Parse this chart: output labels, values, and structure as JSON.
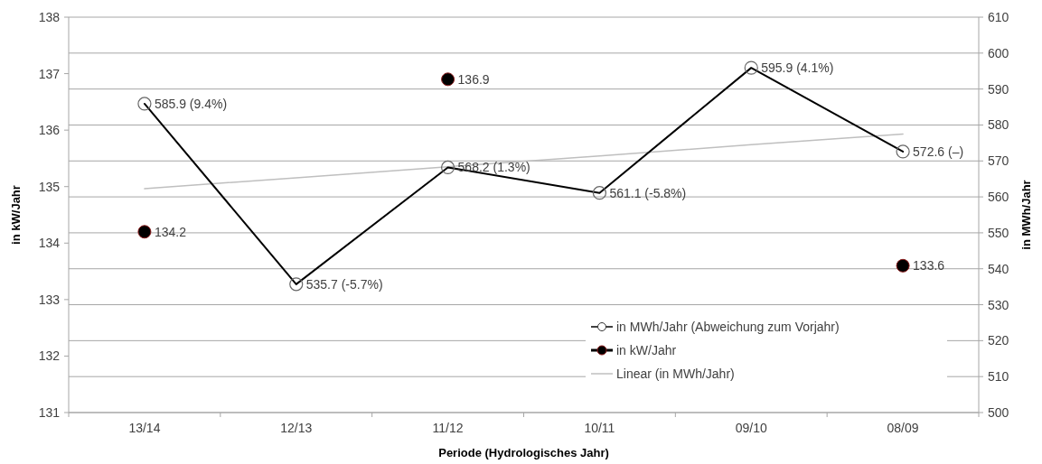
{
  "chart_data": {
    "type": "line",
    "categories": [
      "13/14",
      "12/13",
      "11/12",
      "10/11",
      "09/10",
      "08/09"
    ],
    "series": [
      {
        "name": "in MWh/Jahr (Abweichung zum Vorjahr)",
        "axis": "y2",
        "color": "#000000",
        "marker": "circle",
        "values": [
          585.9,
          535.7,
          568.2,
          561.1,
          595.9,
          572.6
        ],
        "value_labels": [
          "585.9 (9.4%)",
          "535.7 (-5.7%)",
          "568.2 (1.3%)",
          "561.1 (-5.8%)",
          "595.9 (4.1%)",
          "572.6 (–)"
        ]
      },
      {
        "name": "in kW/Jahr",
        "type": "scatter",
        "axis": "y",
        "color": "#000000",
        "marker": "circle",
        "values": [
          134.2,
          null,
          136.9,
          null,
          null,
          133.6
        ],
        "value_labels": [
          "134.2",
          null,
          "136.9",
          null,
          null,
          "133.6"
        ]
      },
      {
        "name": "Linear (in MWh/Jahr)",
        "axis": "y2",
        "color": "#bfbfbf",
        "marker": "none",
        "values": [
          562.3,
          565.3,
          568.4,
          571.4,
          574.5,
          577.5
        ]
      }
    ],
    "xlabel": "Periode (Hydrologisches Jahr)",
    "ylabel": "in kW/Jahr",
    "y2label": "in MWh/Jahr",
    "ylim": [
      131,
      138
    ],
    "yticks": [
      131,
      132,
      133,
      134,
      135,
      136,
      137,
      138
    ],
    "y2lim": [
      500,
      610
    ],
    "y2ticks": [
      500,
      510,
      520,
      530,
      540,
      550,
      560,
      570,
      580,
      590,
      600,
      610
    ],
    "grid": "y2",
    "legend": "bottom right"
  }
}
